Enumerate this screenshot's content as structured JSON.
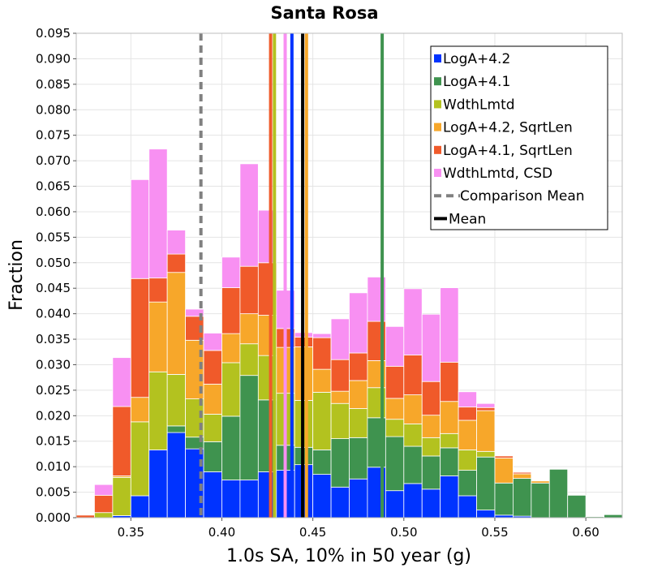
{
  "chart_data": {
    "type": "bar",
    "stacked": true,
    "title": "Santa Rosa",
    "xlabel": "1.0s SA, 10% in 50 year (g)",
    "ylabel": "Fraction",
    "xlim": [
      0.32,
      0.62
    ],
    "ylim": [
      0.0,
      0.095
    ],
    "bin_width": 0.01,
    "x_ticks": [
      0.35,
      0.4,
      0.45,
      0.5,
      0.55,
      0.6
    ],
    "x_tick_labels": [
      "0.35",
      "0.40",
      "0.45",
      "0.50",
      "0.55",
      "0.60"
    ],
    "y_ticks": [
      0.0,
      0.005,
      0.01,
      0.015,
      0.02,
      0.025,
      0.03,
      0.035,
      0.04,
      0.045,
      0.05,
      0.055,
      0.06,
      0.065,
      0.07,
      0.075,
      0.08,
      0.085,
      0.09,
      0.095
    ],
    "y_tick_labels": [
      "0.000",
      "0.005",
      "0.010",
      "0.015",
      "0.020",
      "0.025",
      "0.030",
      "0.035",
      "0.040",
      "0.045",
      "0.050",
      "0.055",
      "0.060",
      "0.065",
      "0.070",
      "0.075",
      "0.080",
      "0.085",
      "0.090",
      "0.095"
    ],
    "grid": true,
    "legend_position": "top-right",
    "bin_centers": [
      0.325,
      0.335,
      0.345,
      0.355,
      0.365,
      0.375,
      0.385,
      0.395,
      0.405,
      0.415,
      0.425,
      0.435,
      0.445,
      0.455,
      0.465,
      0.475,
      0.485,
      0.495,
      0.505,
      0.515,
      0.525,
      0.535,
      0.545,
      0.555,
      0.565,
      0.575,
      0.585,
      0.595,
      0.605,
      0.615
    ],
    "series": [
      {
        "name": "LogA+4.2",
        "color": "#0033ff",
        "values": [
          0.0,
          0.0,
          0.0004,
          0.0043,
          0.0133,
          0.0167,
          0.0135,
          0.009,
          0.0074,
          0.0074,
          0.009,
          0.0093,
          0.0104,
          0.0085,
          0.006,
          0.0076,
          0.0099,
          0.0053,
          0.0067,
          0.0056,
          0.0082,
          0.0043,
          0.0015,
          0.0005,
          0.0003,
          0.0,
          0.0,
          0.0,
          0.0,
          0.0
        ]
      },
      {
        "name": "LogA+4.1",
        "color": "#3f934f",
        "values": [
          0.0,
          0.0,
          0.0,
          0.0,
          0.0,
          0.0013,
          0.0023,
          0.0059,
          0.0125,
          0.0205,
          0.0141,
          0.0049,
          0.0034,
          0.0048,
          0.0095,
          0.0081,
          0.0097,
          0.0106,
          0.0073,
          0.0065,
          0.0055,
          0.005,
          0.0104,
          0.0063,
          0.0074,
          0.0068,
          0.0095,
          0.0044,
          0.0002,
          0.0006
        ]
      },
      {
        "name": "WdthLmtd",
        "color": "#b3c21f",
        "values": [
          0.0,
          0.001,
          0.0075,
          0.0145,
          0.0153,
          0.0101,
          0.0075,
          0.0054,
          0.0105,
          0.0062,
          0.0087,
          0.0102,
          0.0092,
          0.0113,
          0.0069,
          0.0057,
          0.0059,
          0.0034,
          0.0044,
          0.0036,
          0.0028,
          0.004,
          0.0011,
          0.0,
          0.0,
          0.0,
          0.0,
          0.0,
          0.0,
          0.0
        ]
      },
      {
        "name": "LogA+4.2, SqrtLen",
        "color": "#f7a72a",
        "values": [
          0.0,
          0.0,
          0.0003,
          0.0048,
          0.0137,
          0.02,
          0.0115,
          0.0059,
          0.0057,
          0.0059,
          0.0079,
          0.009,
          0.0105,
          0.0045,
          0.0024,
          0.0055,
          0.0053,
          0.0041,
          0.0057,
          0.0044,
          0.0063,
          0.0058,
          0.008,
          0.0049,
          0.0009,
          0.0004,
          0.0,
          0.0,
          0.0,
          0.0
        ]
      },
      {
        "name": "LogA+4.1, SqrtLen",
        "color": "#f05a2a",
        "values": [
          0.0005,
          0.0034,
          0.0136,
          0.0233,
          0.0047,
          0.0036,
          0.0047,
          0.0066,
          0.009,
          0.0093,
          0.0103,
          0.0037,
          0.0019,
          0.0062,
          0.0062,
          0.0054,
          0.0077,
          0.0063,
          0.0078,
          0.0066,
          0.0077,
          0.0026,
          0.0006,
          0.0004,
          0.0003,
          0.0,
          0.0,
          0.0,
          0.0,
          0.0
        ]
      },
      {
        "name": "WdthLmtd, CSD",
        "color": "#f890f2",
        "values": [
          0.0,
          0.0021,
          0.0096,
          0.0194,
          0.0253,
          0.0047,
          0.0014,
          0.0034,
          0.006,
          0.0201,
          0.0103,
          0.0075,
          0.0009,
          0.0008,
          0.008,
          0.0118,
          0.0087,
          0.0078,
          0.013,
          0.0132,
          0.0146,
          0.003,
          0.0008,
          0.0,
          0.0,
          0.0,
          0.0,
          0.0,
          0.0,
          0.0
        ]
      }
    ],
    "mean_lines": [
      {
        "series": "LogA+4.2",
        "color": "#0033ff",
        "x": 0.4385
      },
      {
        "series": "LogA+4.1",
        "color": "#3f934f",
        "x": 0.4881
      },
      {
        "series": "WdthLmtd",
        "color": "#b3c21f",
        "x": 0.4289
      },
      {
        "series": "LogA+4.2, SqrtLen",
        "color": "#f7a72a",
        "x": 0.4465
      },
      {
        "series": "LogA+4.1, SqrtLen",
        "color": "#f05a2a",
        "x": 0.4268
      },
      {
        "series": "WdthLmtd, CSD",
        "color": "#f890f2",
        "x": 0.4348
      }
    ],
    "comparison_mean": {
      "x": 0.3885,
      "color": "#808080",
      "style": "dashed"
    },
    "mean": {
      "x": 0.4444,
      "color": "#000000"
    },
    "legend": [
      {
        "label": "LogA+4.2",
        "color": "#0033ff",
        "kind": "box"
      },
      {
        "label": "LogA+4.1",
        "color": "#3f934f",
        "kind": "box"
      },
      {
        "label": "WdthLmtd",
        "color": "#b3c21f",
        "kind": "box"
      },
      {
        "label": "LogA+4.2, SqrtLen",
        "color": "#f7a72a",
        "kind": "box"
      },
      {
        "label": "LogA+4.1, SqrtLen",
        "color": "#f05a2a",
        "kind": "box"
      },
      {
        "label": "WdthLmtd, CSD",
        "color": "#f890f2",
        "kind": "box"
      },
      {
        "label": "Comparison Mean",
        "color": "#808080",
        "kind": "dash"
      },
      {
        "label": "Mean",
        "color": "#000000",
        "kind": "line"
      }
    ]
  }
}
